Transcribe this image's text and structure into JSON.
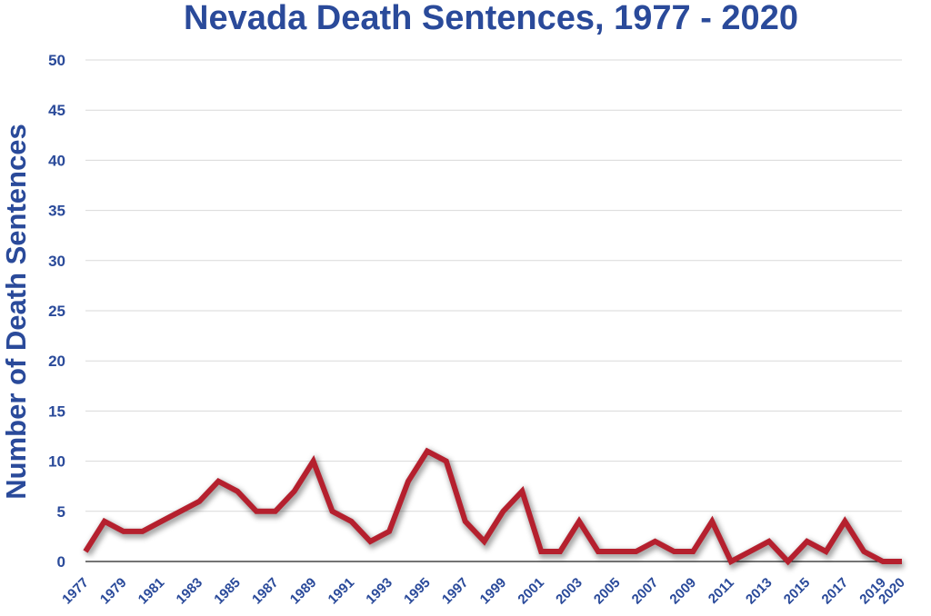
{
  "chart_data": {
    "type": "line",
    "title": "Nevada Death Sentences, 1977 - 2020",
    "xlabel": "",
    "ylabel": "Number of Death Sentences",
    "ylim": [
      0,
      50
    ],
    "yticks": [
      "0",
      "5",
      "10",
      "15",
      "20",
      "25",
      "30",
      "35",
      "40",
      "45",
      "50"
    ],
    "x": [
      1977,
      1978,
      1979,
      1980,
      1981,
      1982,
      1983,
      1984,
      1985,
      1986,
      1987,
      1988,
      1989,
      1990,
      1991,
      1992,
      1993,
      1994,
      1995,
      1996,
      1997,
      1998,
      1999,
      2000,
      2001,
      2002,
      2003,
      2004,
      2005,
      2006,
      2007,
      2008,
      2009,
      2010,
      2011,
      2012,
      2013,
      2014,
      2015,
      2016,
      2017,
      2018,
      2019,
      2020
    ],
    "xtick_labels": [
      "1977",
      "1979",
      "1981",
      "1983",
      "1985",
      "1987",
      "1989",
      "1991",
      "1993",
      "1995",
      "1997",
      "1999",
      "2001",
      "2003",
      "2005",
      "2007",
      "2009",
      "2011",
      "2013",
      "2015",
      "2017",
      "2019",
      "2020"
    ],
    "series": [
      {
        "values": [
          1,
          4,
          3,
          3,
          4,
          5,
          6,
          8,
          7,
          5,
          5,
          7,
          10,
          5,
          4,
          2,
          3,
          8,
          11,
          10,
          4,
          2,
          5,
          7,
          1,
          1,
          4,
          1,
          1,
          1,
          2,
          1,
          1,
          4,
          0,
          1,
          2,
          0,
          2,
          1,
          4,
          1,
          0,
          0
        ],
        "color": "#b5202e"
      }
    ],
    "grid": true,
    "legend": "none"
  }
}
